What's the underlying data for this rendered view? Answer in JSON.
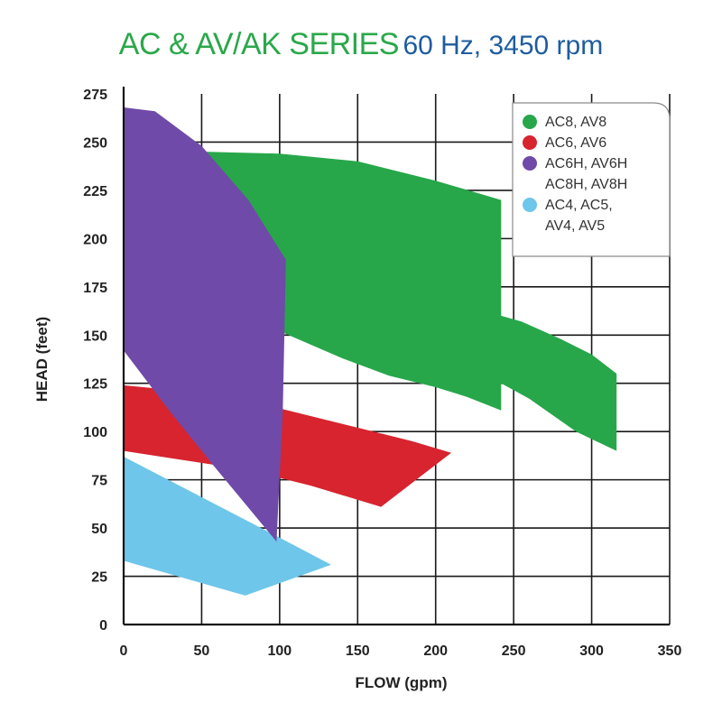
{
  "chart_data": {
    "type": "area",
    "title": "AC & AV/AK SERIES",
    "subtitle": "60 Hz, 3450 rpm",
    "xlabel": "FLOW (gpm)",
    "ylabel": "HEAD (feet)",
    "xlim": [
      0,
      350
    ],
    "ylim": [
      0,
      275
    ],
    "x_ticks": [
      0,
      50,
      100,
      150,
      200,
      250,
      300,
      350
    ],
    "y_ticks": [
      0,
      25,
      50,
      75,
      100,
      125,
      150,
      175,
      200,
      225,
      250,
      275
    ],
    "grid": true,
    "legend_position": "top-right",
    "series": [
      {
        "name": "AC4, AC5, AV4, AV5",
        "legend_lines": [
          "AC4, AC5,",
          "AV4, AV5"
        ],
        "color": "#6ec6ea",
        "outline": [
          [
            0,
            87
          ],
          [
            100,
            45
          ],
          [
            133,
            31
          ],
          [
            78,
            15
          ],
          [
            0,
            33
          ]
        ]
      },
      {
        "name": "AC8, AV8",
        "legend_lines": [
          "AC8, AV8"
        ],
        "color": "#27a74a",
        "outline": [
          [
            52,
            245
          ],
          [
            100,
            244
          ],
          [
            150,
            240
          ],
          [
            200,
            230
          ],
          [
            242,
            220
          ],
          [
            242,
            160
          ],
          [
            255,
            157
          ],
          [
            280,
            148
          ],
          [
            300,
            140
          ],
          [
            316,
            130
          ],
          [
            316,
            90
          ],
          [
            290,
            100
          ],
          [
            260,
            117
          ],
          [
            242,
            125
          ],
          [
            242,
            111
          ],
          [
            220,
            118
          ],
          [
            200,
            123
          ],
          [
            170,
            129
          ],
          [
            140,
            138
          ],
          [
            100,
            152
          ],
          [
            52,
            175
          ]
        ]
      },
      {
        "name": "AC6, AV6",
        "legend_lines": [
          "AC6, AV6"
        ],
        "color": "#d7242f",
        "outline": [
          [
            0,
            124
          ],
          [
            50,
            120
          ],
          [
            100,
            112
          ],
          [
            150,
            102
          ],
          [
            185,
            95
          ],
          [
            210,
            89
          ],
          [
            165,
            61
          ],
          [
            120,
            72
          ],
          [
            80,
            80
          ],
          [
            40,
            85
          ],
          [
            0,
            90
          ]
        ]
      },
      {
        "name": "AC6H, AV6H AC8H, AV8H",
        "legend_lines": [
          "AC6H, AV6H",
          "AC8H, AV8H"
        ],
        "color": "#6f4aa8",
        "outline": [
          [
            0,
            268
          ],
          [
            20,
            266
          ],
          [
            50,
            248
          ],
          [
            80,
            220
          ],
          [
            104,
            189
          ],
          [
            102,
            110
          ],
          [
            98,
            43
          ],
          [
            60,
            80
          ],
          [
            30,
            110
          ],
          [
            0,
            142
          ]
        ]
      }
    ]
  }
}
